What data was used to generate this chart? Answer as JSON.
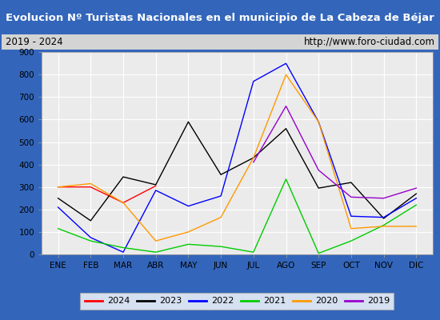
{
  "title": "Evolucion Nº Turistas Nacionales en el municipio de La Cabeza de Béjar",
  "subtitle_left": "2019 - 2024",
  "subtitle_right": "http://www.foro-ciudad.com",
  "months": [
    "ENE",
    "FEB",
    "MAR",
    "ABR",
    "MAY",
    "JUN",
    "JUL",
    "AGO",
    "SEP",
    "OCT",
    "NOV",
    "DIC"
  ],
  "series": {
    "2024": {
      "color": "#ff0000",
      "data": [
        300,
        300,
        230,
        305,
        null,
        null,
        null,
        null,
        null,
        null,
        null,
        null
      ]
    },
    "2023": {
      "color": "#000000",
      "data": [
        250,
        150,
        345,
        310,
        590,
        355,
        430,
        560,
        295,
        320,
        160,
        270
      ]
    },
    "2022": {
      "color": "#0000ff",
      "data": [
        210,
        75,
        10,
        285,
        215,
        260,
        770,
        850,
        590,
        170,
        165,
        250
      ]
    },
    "2021": {
      "color": "#00cc00",
      "data": [
        115,
        60,
        30,
        10,
        45,
        35,
        10,
        335,
        5,
        60,
        130,
        220
      ]
    },
    "2020": {
      "color": "#ff9900",
      "data": [
        300,
        315,
        230,
        60,
        100,
        165,
        430,
        800,
        590,
        115,
        125,
        125
      ]
    },
    "2019": {
      "color": "#9900cc",
      "data": [
        null,
        null,
        null,
        null,
        null,
        null,
        410,
        660,
        375,
        255,
        250,
        295
      ]
    }
  },
  "ylim": [
    0,
    900
  ],
  "yticks": [
    0,
    100,
    200,
    300,
    400,
    500,
    600,
    700,
    800,
    900
  ],
  "title_bg_color": "#3366bb",
  "title_text_color": "#ffffff",
  "subtitle_bg_color": "#d4d4d4",
  "plot_bg_color": "#ebebeb",
  "grid_color": "#ffffff",
  "border_color": "#3366bb",
  "legend_order": [
    "2024",
    "2023",
    "2022",
    "2021",
    "2020",
    "2019"
  ]
}
